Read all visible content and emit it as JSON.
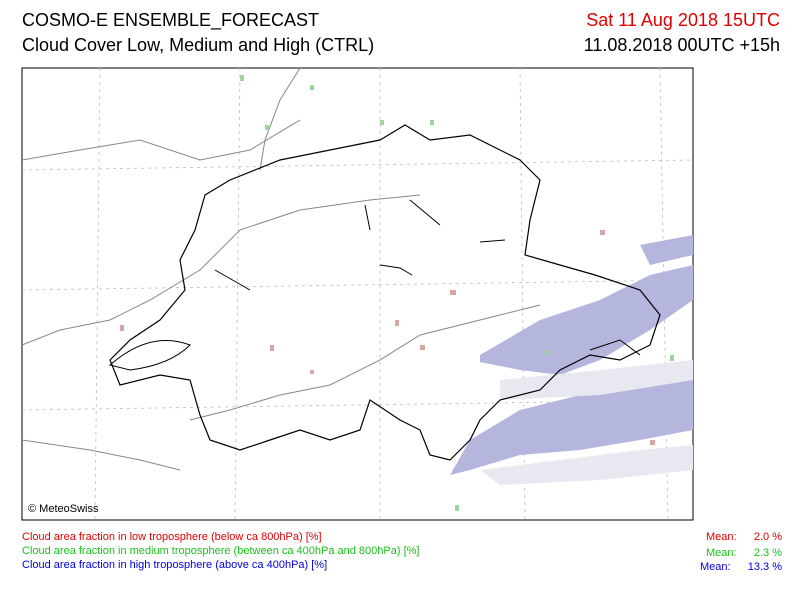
{
  "header": {
    "title": "COSMO-E ENSEMBLE_FORECAST",
    "subtitle": "Cloud Cover Low, Medium and High (CTRL)",
    "valid_time": "Sat 11 Aug 2018 15UTC",
    "run_time": "11.08.2018 00UTC +15h"
  },
  "map": {
    "credit": "© MeteoSwiss"
  },
  "legend": [
    {
      "text": "Cloud area fraction in low troposphere (below ca 800hPa) [%]",
      "mean_label": "Mean:",
      "mean": "2.0 %"
    },
    {
      "text": "Cloud area fraction in medium troposphere (between ca 400hPa and 800hPa) [%]",
      "mean_label": "Mean:",
      "mean": "2.3 %"
    },
    {
      "text": "Cloud area fraction in high troposphere (above ca 400hPa) [%]",
      "mean_label": "Mean:",
      "mean": "13.3 %"
    }
  ]
}
